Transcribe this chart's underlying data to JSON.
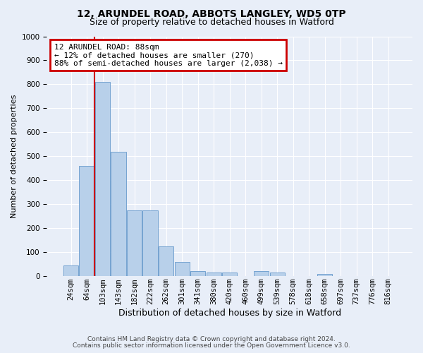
{
  "title_line1": "12, ARUNDEL ROAD, ABBOTS LANGLEY, WD5 0TP",
  "title_line2": "Size of property relative to detached houses in Watford",
  "xlabel": "Distribution of detached houses by size in Watford",
  "ylabel": "Number of detached properties",
  "categories": [
    "24sqm",
    "64sqm",
    "103sqm",
    "143sqm",
    "182sqm",
    "222sqm",
    "262sqm",
    "301sqm",
    "341sqm",
    "380sqm",
    "420sqm",
    "460sqm",
    "499sqm",
    "539sqm",
    "578sqm",
    "618sqm",
    "658sqm",
    "697sqm",
    "737sqm",
    "776sqm",
    "816sqm"
  ],
  "values": [
    45,
    460,
    810,
    520,
    275,
    275,
    125,
    60,
    20,
    15,
    15,
    0,
    20,
    15,
    0,
    0,
    8,
    0,
    0,
    0,
    0
  ],
  "bar_color": "#b8d0ea",
  "bar_edge_color": "#6699cc",
  "vline_x": 1.5,
  "vline_color": "#cc0000",
  "annotation_text": "12 ARUNDEL ROAD: 88sqm\n← 12% of detached houses are smaller (270)\n88% of semi-detached houses are larger (2,038) →",
  "annotation_box_color": "white",
  "annotation_box_edge_color": "#cc0000",
  "ylim": [
    0,
    1000
  ],
  "yticks": [
    0,
    100,
    200,
    300,
    400,
    500,
    600,
    700,
    800,
    900,
    1000
  ],
  "bg_color": "#e8eef8",
  "plot_bg_color": "#e8eef8",
  "footer_line1": "Contains HM Land Registry data © Crown copyright and database right 2024.",
  "footer_line2": "Contains public sector information licensed under the Open Government Licence v3.0.",
  "title_fontsize": 10,
  "subtitle_fontsize": 9,
  "xlabel_fontsize": 9,
  "ylabel_fontsize": 8,
  "tick_fontsize": 7.5,
  "annotation_fontsize": 8,
  "footer_fontsize": 6.5
}
